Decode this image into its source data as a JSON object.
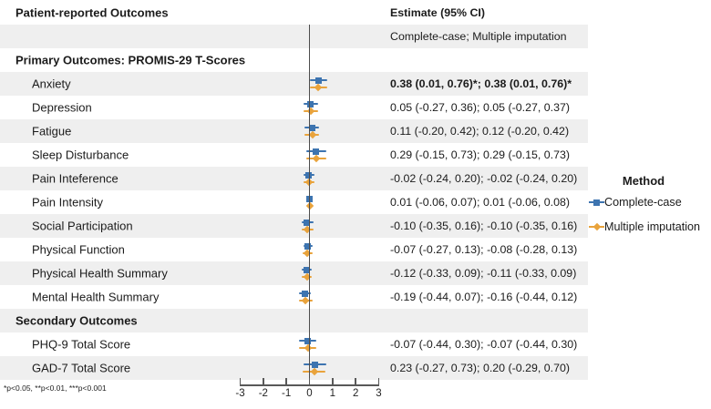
{
  "header": {
    "left_title": "Patient-reported Outcomes",
    "right_title": "Estimate (95% CI)",
    "subheader_right": "Complete-case; Multiple imputation"
  },
  "footnote": "*p<0.05, **p<0.01, ***p<0.001",
  "legend": {
    "title": "Method",
    "items": [
      {
        "label": "Complete-case",
        "marker": "square-icon",
        "color": "#3d74b0"
      },
      {
        "label": "Multiple imputation",
        "marker": "diamond-icon",
        "color": "#e9a33c"
      }
    ]
  },
  "colors": {
    "band": "#efefef",
    "reference_line": "#4d4d4d",
    "complete_case": "#3d74b0",
    "multiple_imputation": "#e9a33c"
  },
  "chart_data": {
    "type": "forest",
    "title": "",
    "xlabel": "",
    "x_ticks": [
      -3,
      -2,
      -1,
      0,
      1,
      2,
      3
    ],
    "x_range": [
      -3.55,
      3.55
    ],
    "reference_line": 0,
    "grid": false,
    "legend_position": "right",
    "series": [
      "Complete-case",
      "Multiple imputation"
    ],
    "rows": [
      {
        "kind": "header",
        "shaded": false,
        "bold": true,
        "label": "Patient-reported Outcomes",
        "estimate": "Estimate (95% CI)"
      },
      {
        "kind": "subheader",
        "shaded": true,
        "bold": false,
        "label": "",
        "estimate": "Complete-case; Multiple imputation"
      },
      {
        "kind": "section",
        "shaded": false,
        "bold": true,
        "label": "Primary Outcomes: PROMIS-29 T-Scores",
        "estimate": ""
      },
      {
        "kind": "item",
        "shaded": true,
        "bold": true,
        "label": "Anxiety",
        "estimate": "0.38 (0.01, 0.76)*; 0.38 (0.01, 0.76)*",
        "cc": [
          0.38,
          0.01,
          0.76
        ],
        "mi": [
          0.38,
          0.01,
          0.76
        ]
      },
      {
        "kind": "item",
        "shaded": false,
        "bold": false,
        "label": "Depression",
        "estimate": "0.05 (-0.27, 0.36); 0.05 (-0.27, 0.37)",
        "cc": [
          0.05,
          -0.27,
          0.36
        ],
        "mi": [
          0.05,
          -0.27,
          0.37
        ]
      },
      {
        "kind": "item",
        "shaded": true,
        "bold": false,
        "label": "Fatigue",
        "estimate": "0.11 (-0.20, 0.42); 0.12 (-0.20, 0.42)",
        "cc": [
          0.11,
          -0.2,
          0.42
        ],
        "mi": [
          0.12,
          -0.2,
          0.42
        ]
      },
      {
        "kind": "item",
        "shaded": false,
        "bold": false,
        "label": "Sleep Disturbance",
        "estimate": "0.29 (-0.15, 0.73); 0.29 (-0.15, 0.73)",
        "cc": [
          0.29,
          -0.15,
          0.73
        ],
        "mi": [
          0.29,
          -0.15,
          0.73
        ]
      },
      {
        "kind": "item",
        "shaded": true,
        "bold": false,
        "label": "Pain Inteference",
        "estimate": "-0.02 (-0.24, 0.20); -0.02 (-0.24, 0.20)",
        "cc": [
          -0.02,
          -0.24,
          0.2
        ],
        "mi": [
          -0.02,
          -0.24,
          0.2
        ]
      },
      {
        "kind": "item",
        "shaded": false,
        "bold": false,
        "label": "Pain Intensity",
        "estimate": "0.01 (-0.06, 0.07); 0.01 (-0.06, 0.08)",
        "cc": [
          0.01,
          -0.06,
          0.07
        ],
        "mi": [
          0.01,
          -0.06,
          0.08
        ]
      },
      {
        "kind": "item",
        "shaded": true,
        "bold": false,
        "label": "Social Participation",
        "estimate": "-0.10 (-0.35, 0.16); -0.10 (-0.35, 0.16)",
        "cc": [
          -0.1,
          -0.35,
          0.16
        ],
        "mi": [
          -0.1,
          -0.35,
          0.16
        ]
      },
      {
        "kind": "item",
        "shaded": false,
        "bold": false,
        "label": "Physical Function",
        "estimate": "-0.07 (-0.27, 0.13); -0.08 (-0.28, 0.13)",
        "cc": [
          -0.07,
          -0.27,
          0.13
        ],
        "mi": [
          -0.08,
          -0.28,
          0.13
        ]
      },
      {
        "kind": "item",
        "shaded": true,
        "bold": false,
        "label": "Physical Health Summary",
        "estimate": "-0.12 (-0.33, 0.09); -0.11 (-0.33, 0.09)",
        "cc": [
          -0.12,
          -0.33,
          0.09
        ],
        "mi": [
          -0.11,
          -0.33,
          0.09
        ]
      },
      {
        "kind": "item",
        "shaded": false,
        "bold": false,
        "label": "Mental Health Summary",
        "estimate": "-0.19 (-0.44, 0.07); -0.16 (-0.44, 0.12)",
        "cc": [
          -0.19,
          -0.44,
          0.07
        ],
        "mi": [
          -0.16,
          -0.44,
          0.12
        ]
      },
      {
        "kind": "section",
        "shaded": true,
        "bold": true,
        "label": "Secondary Outcomes",
        "estimate": ""
      },
      {
        "kind": "item",
        "shaded": false,
        "bold": false,
        "label": "PHQ-9 Total Score",
        "estimate": "-0.07 (-0.44, 0.30); -0.07 (-0.44, 0.30)",
        "cc": [
          -0.07,
          -0.44,
          0.3
        ],
        "mi": [
          -0.07,
          -0.44,
          0.3
        ]
      },
      {
        "kind": "item",
        "shaded": true,
        "bold": false,
        "label": "GAD-7 Total Score",
        "estimate": "0.23 (-0.27, 0.73); 0.20 (-0.29, 0.70)",
        "cc": [
          0.23,
          -0.27,
          0.73
        ],
        "mi": [
          0.2,
          -0.29,
          0.7
        ]
      }
    ]
  }
}
